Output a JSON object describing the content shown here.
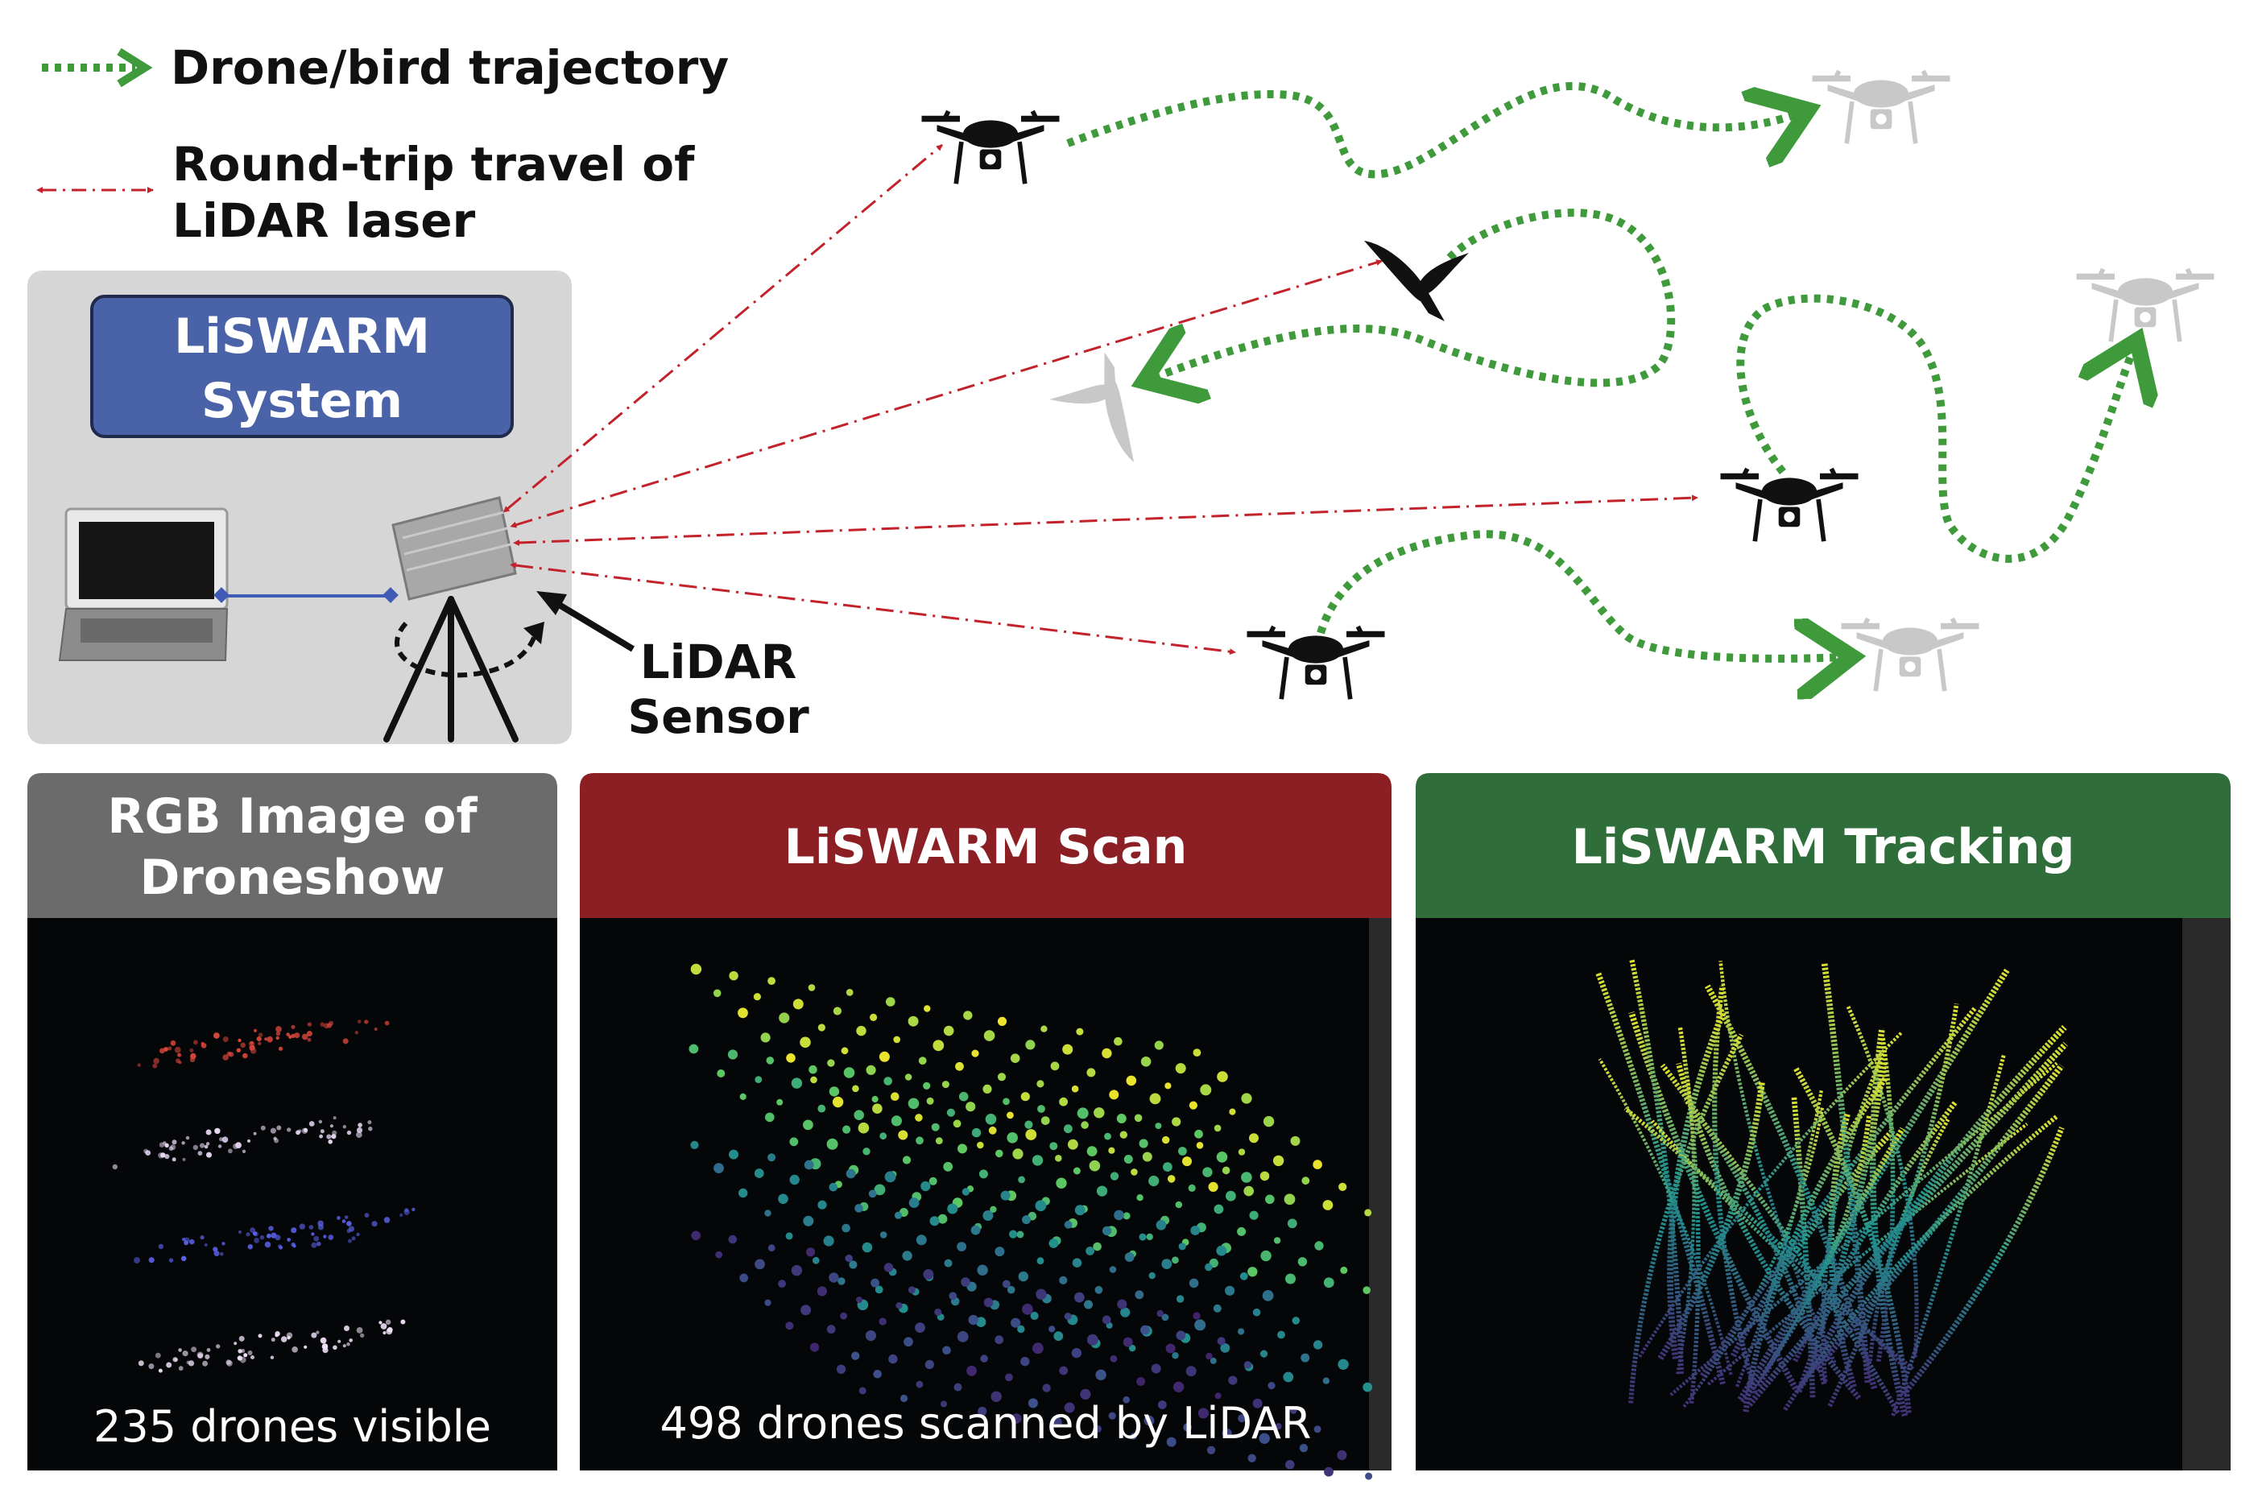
{
  "legend": {
    "trajectory_label": "Drone/bird trajectory",
    "laser_label_line1": "Round-trip travel of",
    "laser_label_line2": "LiDAR laser"
  },
  "system": {
    "title_line1": "LiSWARM",
    "title_line2": "System"
  },
  "sensor": {
    "label_line1": "LiDAR",
    "label_line2": "Sensor"
  },
  "panels": [
    {
      "title_line1": "RGB Image of",
      "title_line2": "Droneshow",
      "caption": "235 drones visible",
      "header_color": "#6b6b6b"
    },
    {
      "title_line1": "LiSWARM Scan",
      "title_line2": "",
      "caption": "498 drones scanned by LiDAR",
      "header_color": "#8b1f24"
    },
    {
      "title_line1": "LiSWARM Tracking",
      "title_line2": "",
      "caption": "",
      "header_color": "#2f6e3a"
    }
  ],
  "colors": {
    "trajectory": "#3f9a3c",
    "laser": "#c4222b",
    "system_box": "#4a63a8",
    "system_bg": "#d6d6d6",
    "connector": "#3f5bb5"
  },
  "icons": [
    "drone-icon",
    "bird-icon",
    "laptop-icon",
    "lidar-sensor-icon",
    "tripod-icon"
  ]
}
